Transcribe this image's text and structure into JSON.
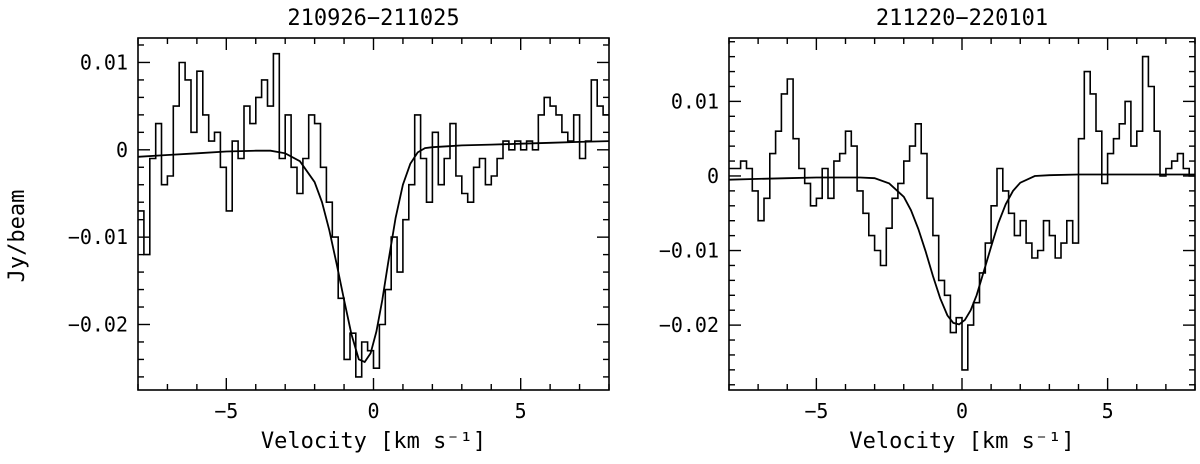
{
  "figure": {
    "ylabel": "Jy/beam"
  },
  "chart_data": [
    {
      "type": "line",
      "title": "210926−211025",
      "xlabel": "Velocity [km s⁻¹]",
      "ylabel": "Jy/beam",
      "xlim": [
        -8,
        8
      ],
      "ylim": [
        -0.0275,
        0.0128
      ],
      "xticks": [
        -5,
        0,
        5
      ],
      "xtick_labels": [
        "−5",
        "0",
        "5"
      ],
      "yticks": [
        0.01,
        0,
        -0.01,
        -0.02
      ],
      "ytick_labels": [
        "0.01",
        "0",
        "−0.01",
        "−0.02"
      ],
      "grid": false,
      "series": [
        {
          "style": "step",
          "x": [
            -8.0,
            -7.8,
            -7.6,
            -7.4,
            -7.2,
            -7.0,
            -6.8,
            -6.6,
            -6.4,
            -6.2,
            -6.0,
            -5.8,
            -5.6,
            -5.4,
            -5.2,
            -5.0,
            -4.8,
            -4.6,
            -4.4,
            -4.2,
            -4.0,
            -3.8,
            -3.6,
            -3.4,
            -3.2,
            -3.0,
            -2.8,
            -2.6,
            -2.4,
            -2.2,
            -2.0,
            -1.8,
            -1.6,
            -1.4,
            -1.2,
            -1.0,
            -0.8,
            -0.6,
            -0.4,
            -0.2,
            0.0,
            0.2,
            0.4,
            0.6,
            0.8,
            1.0,
            1.2,
            1.4,
            1.6,
            1.8,
            2.0,
            2.2,
            2.4,
            2.6,
            2.8,
            3.0,
            3.2,
            3.4,
            3.6,
            3.8,
            4.0,
            4.2,
            4.4,
            4.6,
            4.8,
            5.0,
            5.2,
            5.4,
            5.6,
            5.8,
            6.0,
            6.2,
            6.4,
            6.6,
            6.8,
            7.0,
            7.2,
            7.4,
            7.6,
            7.8
          ],
          "y": [
            -0.007,
            -0.012,
            -0.001,
            0.003,
            -0.004,
            -0.003,
            0.005,
            0.01,
            0.008,
            0.002,
            0.009,
            0.004,
            0.001,
            0.002,
            -0.002,
            -0.007,
            0.001,
            -0.001,
            0.005,
            0.003,
            0.006,
            0.008,
            0.005,
            0.011,
            -0.001,
            0.004,
            -0.002,
            -0.005,
            -0.001,
            0.004,
            0.003,
            -0.002,
            -0.006,
            -0.01,
            -0.017,
            -0.024,
            -0.021,
            -0.026,
            -0.022,
            -0.023,
            -0.025,
            -0.02,
            -0.016,
            -0.01,
            -0.014,
            -0.008,
            -0.004,
            0.004,
            -0.001,
            -0.006,
            0.002,
            -0.004,
            -0.001,
            0.003,
            -0.003,
            -0.005,
            -0.006,
            -0.002,
            -0.001,
            -0.004,
            -0.003,
            -0.001,
            0.001,
            0.0,
            0.001,
            0.0,
            0.001,
            0.0,
            0.004,
            0.006,
            0.005,
            0.004,
            0.002,
            0.001,
            0.004,
            -0.001,
            0.001,
            0.008,
            0.005,
            0.004
          ]
        },
        {
          "style": "smooth",
          "x": [
            -8.0,
            -7.0,
            -6.0,
            -5.0,
            -4.0,
            -3.5,
            -3.0,
            -2.5,
            -2.0,
            -1.75,
            -1.5,
            -1.25,
            -1.0,
            -0.75,
            -0.5,
            -0.3,
            -0.1,
            0.1,
            0.3,
            0.5,
            0.75,
            1.0,
            1.25,
            1.5,
            1.75,
            2.0,
            2.5,
            3.0,
            4.0,
            5.0,
            6.0,
            7.0,
            8.0
          ],
          "y": [
            -0.0008,
            -0.0006,
            -0.0004,
            -0.0002,
            -0.0001,
            -0.0001,
            -0.0004,
            -0.0013,
            -0.0037,
            -0.006,
            -0.0092,
            -0.0131,
            -0.0172,
            -0.0211,
            -0.024,
            -0.0243,
            -0.0233,
            -0.0208,
            -0.0172,
            -0.0129,
            -0.0078,
            -0.004,
            -0.0016,
            -0.0003,
            0.0002,
            0.0003,
            0.0004,
            0.0005,
            0.0006,
            0.0007,
            0.0008,
            0.0009,
            0.001
          ]
        }
      ]
    },
    {
      "type": "line",
      "title": "211220−220101",
      "xlabel": "Velocity [km s⁻¹]",
      "ylabel": "",
      "xlim": [
        -8,
        8
      ],
      "ylim": [
        -0.0287,
        0.0185
      ],
      "xticks": [
        -5,
        0,
        5
      ],
      "xtick_labels": [
        "−5",
        "0",
        "5"
      ],
      "yticks": [
        0.01,
        0,
        -0.01,
        -0.02
      ],
      "ytick_labels": [
        "0.01",
        "0",
        "−0.01",
        "−0.02"
      ],
      "grid": false,
      "series": [
        {
          "style": "step",
          "x": [
            -8.0,
            -7.8,
            -7.6,
            -7.4,
            -7.2,
            -7.0,
            -6.8,
            -6.6,
            -6.4,
            -6.2,
            -6.0,
            -5.8,
            -5.6,
            -5.4,
            -5.2,
            -5.0,
            -4.8,
            -4.6,
            -4.4,
            -4.2,
            -4.0,
            -3.8,
            -3.6,
            -3.4,
            -3.2,
            -3.0,
            -2.8,
            -2.6,
            -2.4,
            -2.2,
            -2.0,
            -1.8,
            -1.6,
            -1.4,
            -1.2,
            -1.0,
            -0.8,
            -0.6,
            -0.4,
            -0.2,
            0.0,
            0.2,
            0.4,
            0.6,
            0.8,
            1.0,
            1.2,
            1.4,
            1.6,
            1.8,
            2.0,
            2.2,
            2.4,
            2.6,
            2.8,
            3.0,
            3.2,
            3.4,
            3.6,
            3.8,
            4.0,
            4.2,
            4.4,
            4.6,
            4.8,
            5.0,
            5.2,
            5.4,
            5.6,
            5.8,
            6.0,
            6.2,
            6.4,
            6.6,
            6.8,
            7.0,
            7.2,
            7.4,
            7.6,
            7.8
          ],
          "y": [
            0.001,
            0.001,
            0.002,
            0.001,
            -0.002,
            -0.006,
            -0.003,
            0.003,
            0.006,
            0.011,
            0.013,
            0.005,
            0.001,
            -0.001,
            -0.004,
            -0.003,
            0.001,
            -0.003,
            0.002,
            0.003,
            0.006,
            0.004,
            -0.002,
            -0.005,
            -0.008,
            -0.01,
            -0.012,
            -0.007,
            -0.003,
            -0.001,
            0.002,
            0.004,
            0.007,
            0.003,
            -0.003,
            -0.008,
            -0.014,
            -0.016,
            -0.021,
            -0.019,
            -0.026,
            -0.02,
            -0.017,
            -0.013,
            -0.009,
            -0.004,
            0.001,
            -0.002,
            -0.005,
            -0.008,
            -0.006,
            -0.009,
            -0.011,
            -0.01,
            -0.006,
            -0.008,
            -0.011,
            -0.009,
            -0.006,
            -0.009,
            0.005,
            0.014,
            0.011,
            0.006,
            -0.001,
            0.003,
            0.005,
            0.007,
            0.01,
            0.004,
            0.006,
            0.016,
            0.012,
            0.006,
            0.0,
            0.001,
            0.002,
            0.003,
            0.001,
            0.0
          ]
        },
        {
          "style": "smooth",
          "x": [
            -8.0,
            -7.0,
            -6.0,
            -5.0,
            -4.0,
            -3.5,
            -3.0,
            -2.5,
            -2.0,
            -1.75,
            -1.5,
            -1.25,
            -1.0,
            -0.75,
            -0.5,
            -0.3,
            -0.1,
            0.1,
            0.3,
            0.5,
            0.75,
            1.0,
            1.25,
            1.5,
            1.75,
            2.0,
            2.5,
            3.0,
            4.0,
            5.0,
            6.0,
            7.0,
            8.0
          ],
          "y": [
            -0.0005,
            -0.0004,
            -0.0003,
            -0.0002,
            -0.0002,
            -0.0002,
            -0.0003,
            -0.001,
            -0.0028,
            -0.0046,
            -0.0071,
            -0.0101,
            -0.0134,
            -0.0164,
            -0.0187,
            -0.0197,
            -0.0199,
            -0.0193,
            -0.018,
            -0.016,
            -0.0128,
            -0.0095,
            -0.0063,
            -0.0038,
            -0.002,
            -0.0009,
            0.0,
            0.0001,
            0.0002,
            0.0002,
            0.0002,
            0.0002,
            0.0002
          ]
        }
      ]
    }
  ]
}
